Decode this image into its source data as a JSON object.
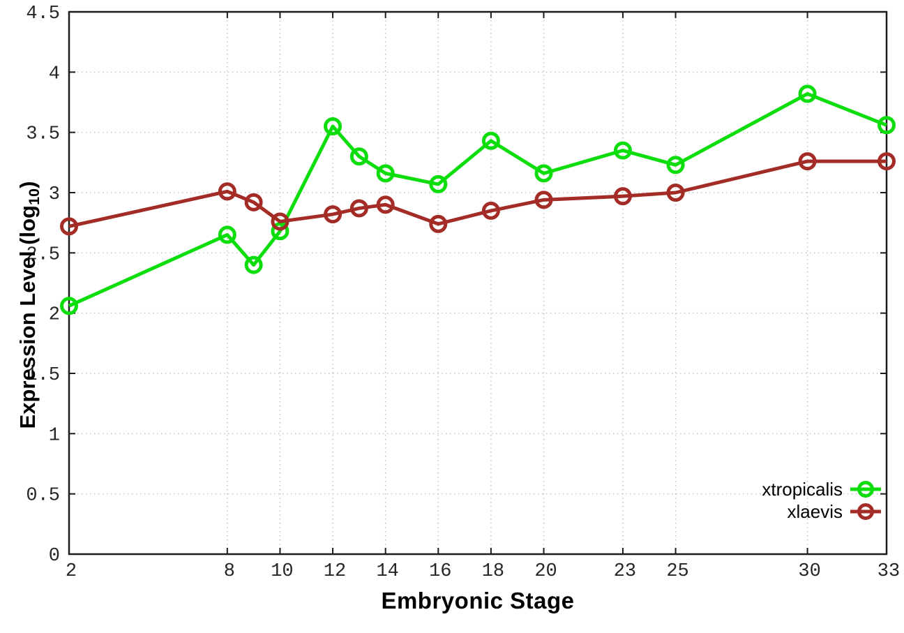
{
  "chart_data": {
    "type": "line",
    "title": "",
    "xlabel": "Embryonic Stage",
    "ylabel_main": "Expression Level (log",
    "ylabel_sub": "10",
    "ylabel_close": ")",
    "xlim": [
      2,
      33
    ],
    "ylim": [
      0,
      4.5
    ],
    "grid": true,
    "legend_position": "bottom-right-inside",
    "xticks": [
      "2",
      "8",
      "10",
      "12",
      "14",
      "16",
      "18",
      "20",
      "23",
      "25",
      "30",
      "33"
    ],
    "xtick_values": [
      2,
      8,
      10,
      12,
      14,
      16,
      18,
      20,
      23,
      25,
      30,
      33
    ],
    "yticks": [
      "0",
      "0.5",
      "1",
      "1.5",
      "2",
      "2.5",
      "3",
      "3.5",
      "4",
      "4.5"
    ],
    "ytick_values": [
      0,
      0.5,
      1,
      1.5,
      2,
      2.5,
      3,
      3.5,
      4,
      4.5
    ],
    "x": [
      2,
      8,
      9,
      10,
      12,
      13,
      14,
      16,
      18,
      20,
      23,
      25,
      30,
      33
    ],
    "series": [
      {
        "name": "xtropicalis",
        "color": "#0ddd0d",
        "values": [
          2.06,
          2.65,
          2.4,
          2.68,
          3.55,
          3.3,
          3.16,
          3.07,
          3.43,
          3.16,
          3.35,
          3.23,
          3.82,
          3.56
        ]
      },
      {
        "name": "xlaevis",
        "color": "#a32c26",
        "values": [
          2.72,
          3.01,
          2.92,
          2.76,
          2.82,
          2.87,
          2.9,
          2.74,
          2.85,
          2.94,
          2.97,
          3.0,
          3.26,
          3.26
        ]
      }
    ],
    "style": {
      "grid_color": "#c2c2c2",
      "axis_color": "#1c1c1c",
      "tick_text_color": "#262626",
      "background": "#ffffff"
    }
  }
}
